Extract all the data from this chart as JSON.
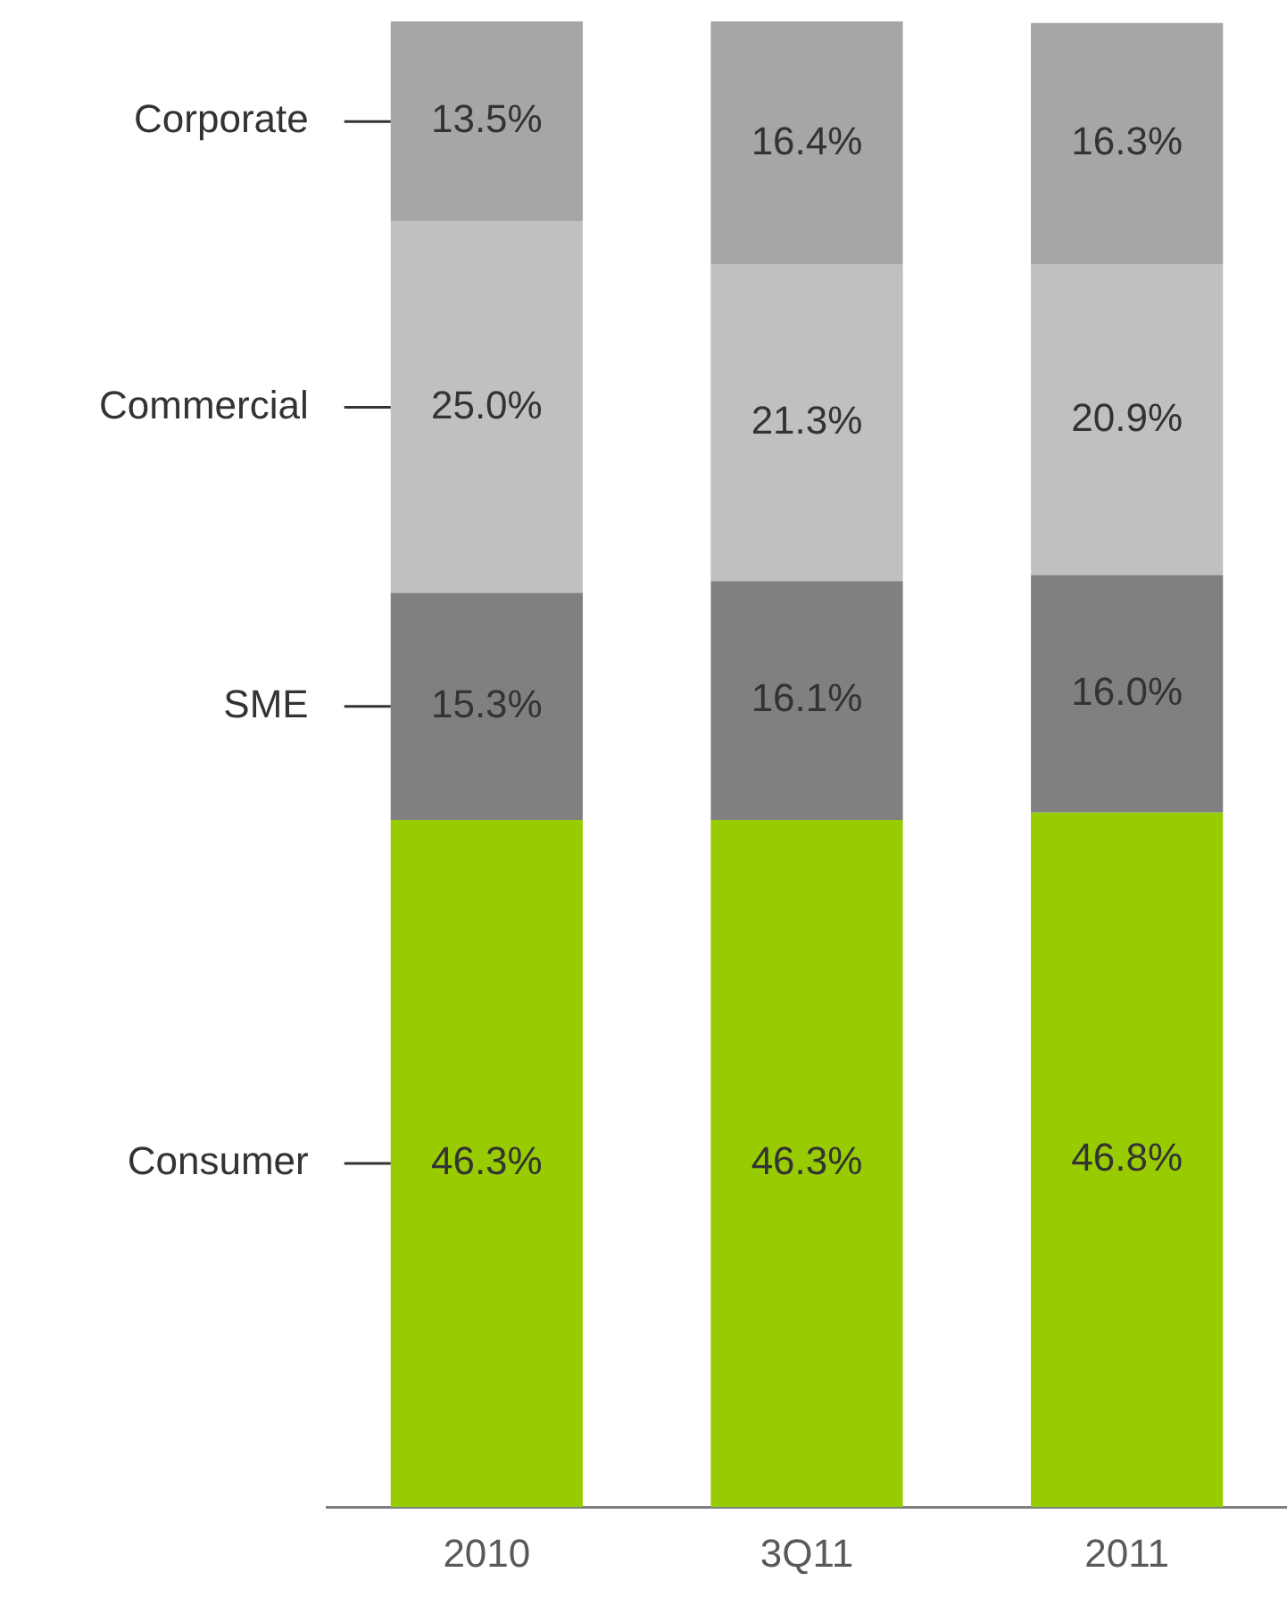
{
  "chart_data": {
    "type": "bar",
    "stacked": true,
    "categories": [
      "2010",
      "3Q11",
      "2011"
    ],
    "series": [
      {
        "name": "Consumer",
        "color": "#99cc00",
        "values": [
          46.3,
          46.3,
          46.8
        ],
        "value_labels": [
          "46.3%",
          "46.3%",
          "46.8%"
        ]
      },
      {
        "name": "SME",
        "color": "#808080",
        "values": [
          15.3,
          16.1,
          16.0
        ],
        "value_labels": [
          "15.3%",
          "16.1%",
          "16.0%"
        ]
      },
      {
        "name": "Commercial",
        "color": "#c0c0c0",
        "values": [
          25.0,
          21.3,
          20.9
        ],
        "value_labels": [
          "25.0%",
          "21.3%",
          "20.9%"
        ]
      },
      {
        "name": "Corporate",
        "color": "#a6a6a6",
        "values": [
          13.5,
          16.4,
          16.3
        ],
        "value_labels": [
          "13.5%",
          "16.4%",
          "16.3%"
        ]
      }
    ]
  }
}
